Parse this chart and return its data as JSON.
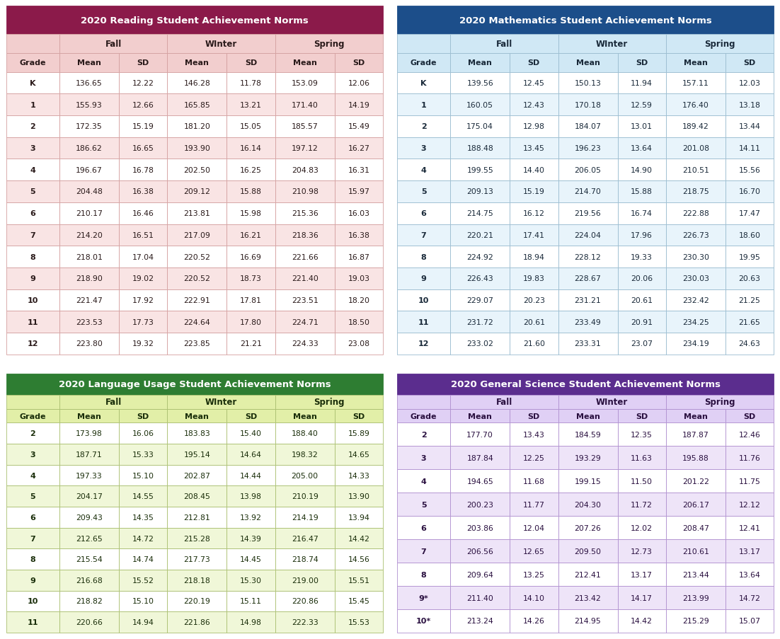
{
  "reading": {
    "title": "2020 Reading Student Achievement Norms",
    "title_bg": "#8B1A4A",
    "subheader_bg": "#F2CECE",
    "odd_row_bg": "#FFFFFF",
    "even_row_bg": "#F9E4E4",
    "grade_odd_bg": "#FFFFFF",
    "grade_even_bg": "#F9E4E4",
    "border_color": "#D4A0A0",
    "text_color": "#2A1A1A",
    "grades": [
      "K",
      "1",
      "2",
      "3",
      "4",
      "5",
      "6",
      "7",
      "8",
      "9",
      "10",
      "11",
      "12"
    ],
    "data": [
      [
        136.65,
        12.22,
        146.28,
        11.78,
        153.09,
        12.06
      ],
      [
        155.93,
        12.66,
        165.85,
        13.21,
        171.4,
        14.19
      ],
      [
        172.35,
        15.19,
        181.2,
        15.05,
        185.57,
        15.49
      ],
      [
        186.62,
        16.65,
        193.9,
        16.14,
        197.12,
        16.27
      ],
      [
        196.67,
        16.78,
        202.5,
        16.25,
        204.83,
        16.31
      ],
      [
        204.48,
        16.38,
        209.12,
        15.88,
        210.98,
        15.97
      ],
      [
        210.17,
        16.46,
        213.81,
        15.98,
        215.36,
        16.03
      ],
      [
        214.2,
        16.51,
        217.09,
        16.21,
        218.36,
        16.38
      ],
      [
        218.01,
        17.04,
        220.52,
        16.69,
        221.66,
        16.87
      ],
      [
        218.9,
        19.02,
        220.52,
        18.73,
        221.4,
        19.03
      ],
      [
        221.47,
        17.92,
        222.91,
        17.81,
        223.51,
        18.2
      ],
      [
        223.53,
        17.73,
        224.64,
        17.8,
        224.71,
        18.5
      ],
      [
        223.8,
        19.32,
        223.85,
        21.21,
        224.33,
        23.08
      ]
    ]
  },
  "math": {
    "title": "2020 Mathematics Student Achievement Norms",
    "title_bg": "#1C4E8A",
    "subheader_bg": "#D0E8F5",
    "odd_row_bg": "#FFFFFF",
    "even_row_bg": "#E8F4FB",
    "grade_odd_bg": "#FFFFFF",
    "grade_even_bg": "#E8F4FB",
    "border_color": "#9ABCD0",
    "text_color": "#1A2A3A",
    "grades": [
      "K",
      "1",
      "2",
      "3",
      "4",
      "5",
      "6",
      "7",
      "8",
      "9",
      "10",
      "11",
      "12"
    ],
    "data": [
      [
        139.56,
        12.45,
        150.13,
        11.94,
        157.11,
        12.03
      ],
      [
        160.05,
        12.43,
        170.18,
        12.59,
        176.4,
        13.18
      ],
      [
        175.04,
        12.98,
        184.07,
        13.01,
        189.42,
        13.44
      ],
      [
        188.48,
        13.45,
        196.23,
        13.64,
        201.08,
        14.11
      ],
      [
        199.55,
        14.4,
        206.05,
        14.9,
        210.51,
        15.56
      ],
      [
        209.13,
        15.19,
        214.7,
        15.88,
        218.75,
        16.7
      ],
      [
        214.75,
        16.12,
        219.56,
        16.74,
        222.88,
        17.47
      ],
      [
        220.21,
        17.41,
        224.04,
        17.96,
        226.73,
        18.6
      ],
      [
        224.92,
        18.94,
        228.12,
        19.33,
        230.3,
        19.95
      ],
      [
        226.43,
        19.83,
        228.67,
        20.06,
        230.03,
        20.63
      ],
      [
        229.07,
        20.23,
        231.21,
        20.61,
        232.42,
        21.25
      ],
      [
        231.72,
        20.61,
        233.49,
        20.91,
        234.25,
        21.65
      ],
      [
        233.02,
        21.6,
        233.31,
        23.07,
        234.19,
        24.63
      ]
    ]
  },
  "language": {
    "title": "2020 Language Usage Student Achievement Norms",
    "title_bg": "#2E7D32",
    "subheader_bg": "#E2EFA8",
    "odd_row_bg": "#FFFFFF",
    "even_row_bg": "#F0F7D8",
    "grade_odd_bg": "#FFFFFF",
    "grade_even_bg": "#F0F7D8",
    "border_color": "#AABF70",
    "text_color": "#1A2E0A",
    "grades": [
      "2",
      "3",
      "4",
      "5",
      "6",
      "7",
      "8",
      "9",
      "10",
      "11"
    ],
    "data": [
      [
        173.98,
        16.06,
        183.83,
        15.4,
        188.4,
        15.89
      ],
      [
        187.71,
        15.33,
        195.14,
        14.64,
        198.32,
        14.65
      ],
      [
        197.33,
        15.1,
        202.87,
        14.44,
        205.0,
        14.33
      ],
      [
        204.17,
        14.55,
        208.45,
        13.98,
        210.19,
        13.9
      ],
      [
        209.43,
        14.35,
        212.81,
        13.92,
        214.19,
        13.94
      ],
      [
        212.65,
        14.72,
        215.28,
        14.39,
        216.47,
        14.42
      ],
      [
        215.54,
        14.74,
        217.73,
        14.45,
        218.74,
        14.56
      ],
      [
        216.68,
        15.52,
        218.18,
        15.3,
        219.0,
        15.51
      ],
      [
        218.82,
        15.1,
        220.19,
        15.11,
        220.86,
        15.45
      ],
      [
        220.66,
        14.94,
        221.86,
        14.98,
        222.33,
        15.53
      ]
    ]
  },
  "science": {
    "title": "2020 General Science Student Achievement Norms",
    "title_bg": "#5B2D8E",
    "subheader_bg": "#E0D0F5",
    "odd_row_bg": "#FFFFFF",
    "even_row_bg": "#EEE4F8",
    "grade_odd_bg": "#FFFFFF",
    "grade_even_bg": "#EEE4F8",
    "border_color": "#B090D0",
    "text_color": "#2A1040",
    "grades": [
      "2",
      "3",
      "4",
      "5",
      "6",
      "7",
      "8",
      "9*",
      "10*"
    ],
    "data": [
      [
        177.7,
        13.43,
        184.59,
        12.35,
        187.87,
        12.46
      ],
      [
        187.84,
        12.25,
        193.29,
        11.63,
        195.88,
        11.76
      ],
      [
        194.65,
        11.68,
        199.15,
        11.5,
        201.22,
        11.75
      ],
      [
        200.23,
        11.77,
        204.3,
        11.72,
        206.17,
        12.12
      ],
      [
        203.86,
        12.04,
        207.26,
        12.02,
        208.47,
        12.41
      ],
      [
        206.56,
        12.65,
        209.5,
        12.73,
        210.61,
        13.17
      ],
      [
        209.64,
        13.25,
        212.41,
        13.17,
        213.44,
        13.64
      ],
      [
        211.4,
        14.1,
        213.42,
        14.17,
        213.99,
        14.72
      ],
      [
        213.24,
        14.26,
        214.95,
        14.42,
        215.29,
        15.07
      ]
    ]
  }
}
